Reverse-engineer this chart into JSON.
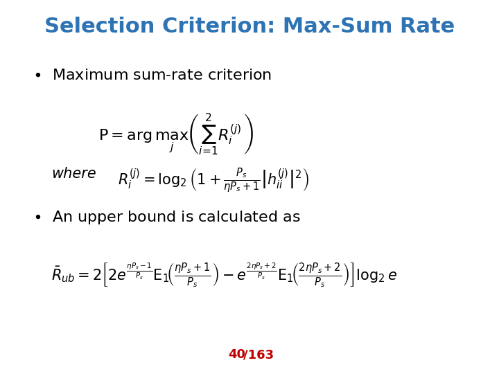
{
  "title": "Selection Criterion: Max-Sum Rate",
  "title_color": "#2E74B5",
  "title_fontsize": 22,
  "background_color": "#FFFFFF",
  "bullet1_text": "Maximum sum-rate criterion",
  "bullet2_text": "An upper bound is calculated as",
  "eq_where_label": "where",
  "page_text": "40",
  "page_text2": "/163",
  "page_color": "#C00000",
  "bullet_fontsize": 16,
  "eq_fontsize": 14,
  "text_color": "#000000"
}
